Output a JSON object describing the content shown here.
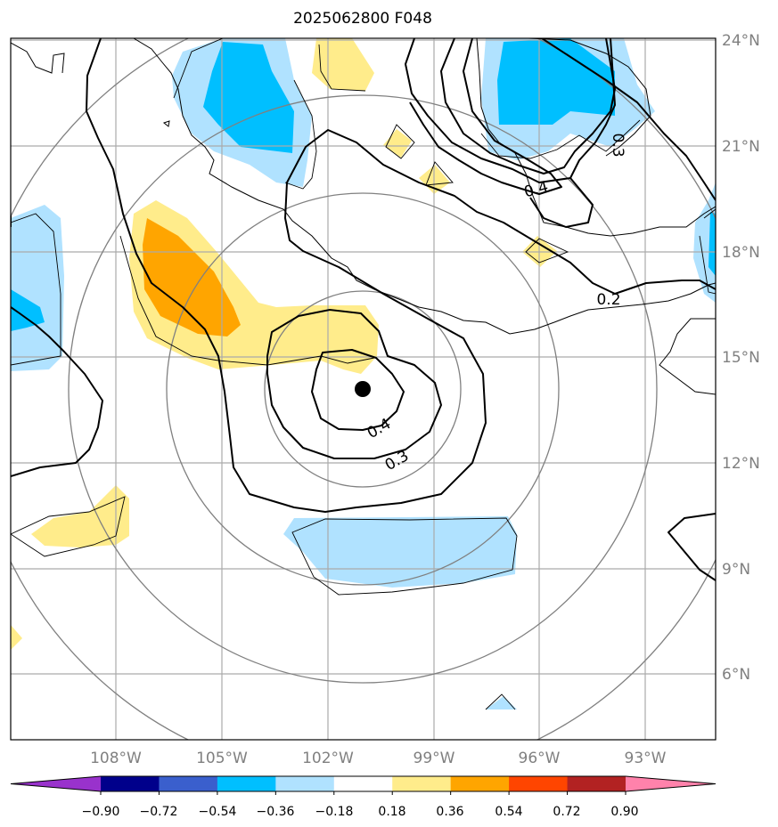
{
  "title": "2025062800 F048",
  "lat_labels": [
    "24°N",
    "21°N",
    "18°N",
    "15°N",
    "12°N",
    "9°N",
    "6°N"
  ],
  "lon_labels": [
    "108°W",
    "105°W",
    "102°W",
    "99°W",
    "96°W",
    "93°W"
  ],
  "contour_labels": [
    "0.4",
    "0.3",
    "0.2",
    "0.4",
    "0.3"
  ],
  "colorbar": {
    "ticks": [
      "−0.90",
      "−0.72",
      "−0.54",
      "−0.36",
      "−0.18",
      "0.18",
      "0.36",
      "0.54",
      "0.72",
      "0.90"
    ],
    "colors": [
      "#9932cc",
      "#00008b",
      "#3a5fcd",
      "#00bfff",
      "#b0e2ff",
      "#ffffff",
      "#ffec8b",
      "#ffa500",
      "#ff4500",
      "#b22222",
      "#ff82ab"
    ]
  },
  "map": {
    "extent_lon": [
      -111,
      -91
    ],
    "extent_lat": [
      4,
      24
    ],
    "storm_center": {
      "lon": -101,
      "lat": 14.1
    },
    "colors": {
      "light_blue": "#b0e2ff",
      "deep_sky_blue": "#00bfff",
      "light_yellow": "#ffec8b",
      "orange": "#ffa500",
      "grid": "#aaaaaa",
      "range_rings": "#808080"
    }
  }
}
